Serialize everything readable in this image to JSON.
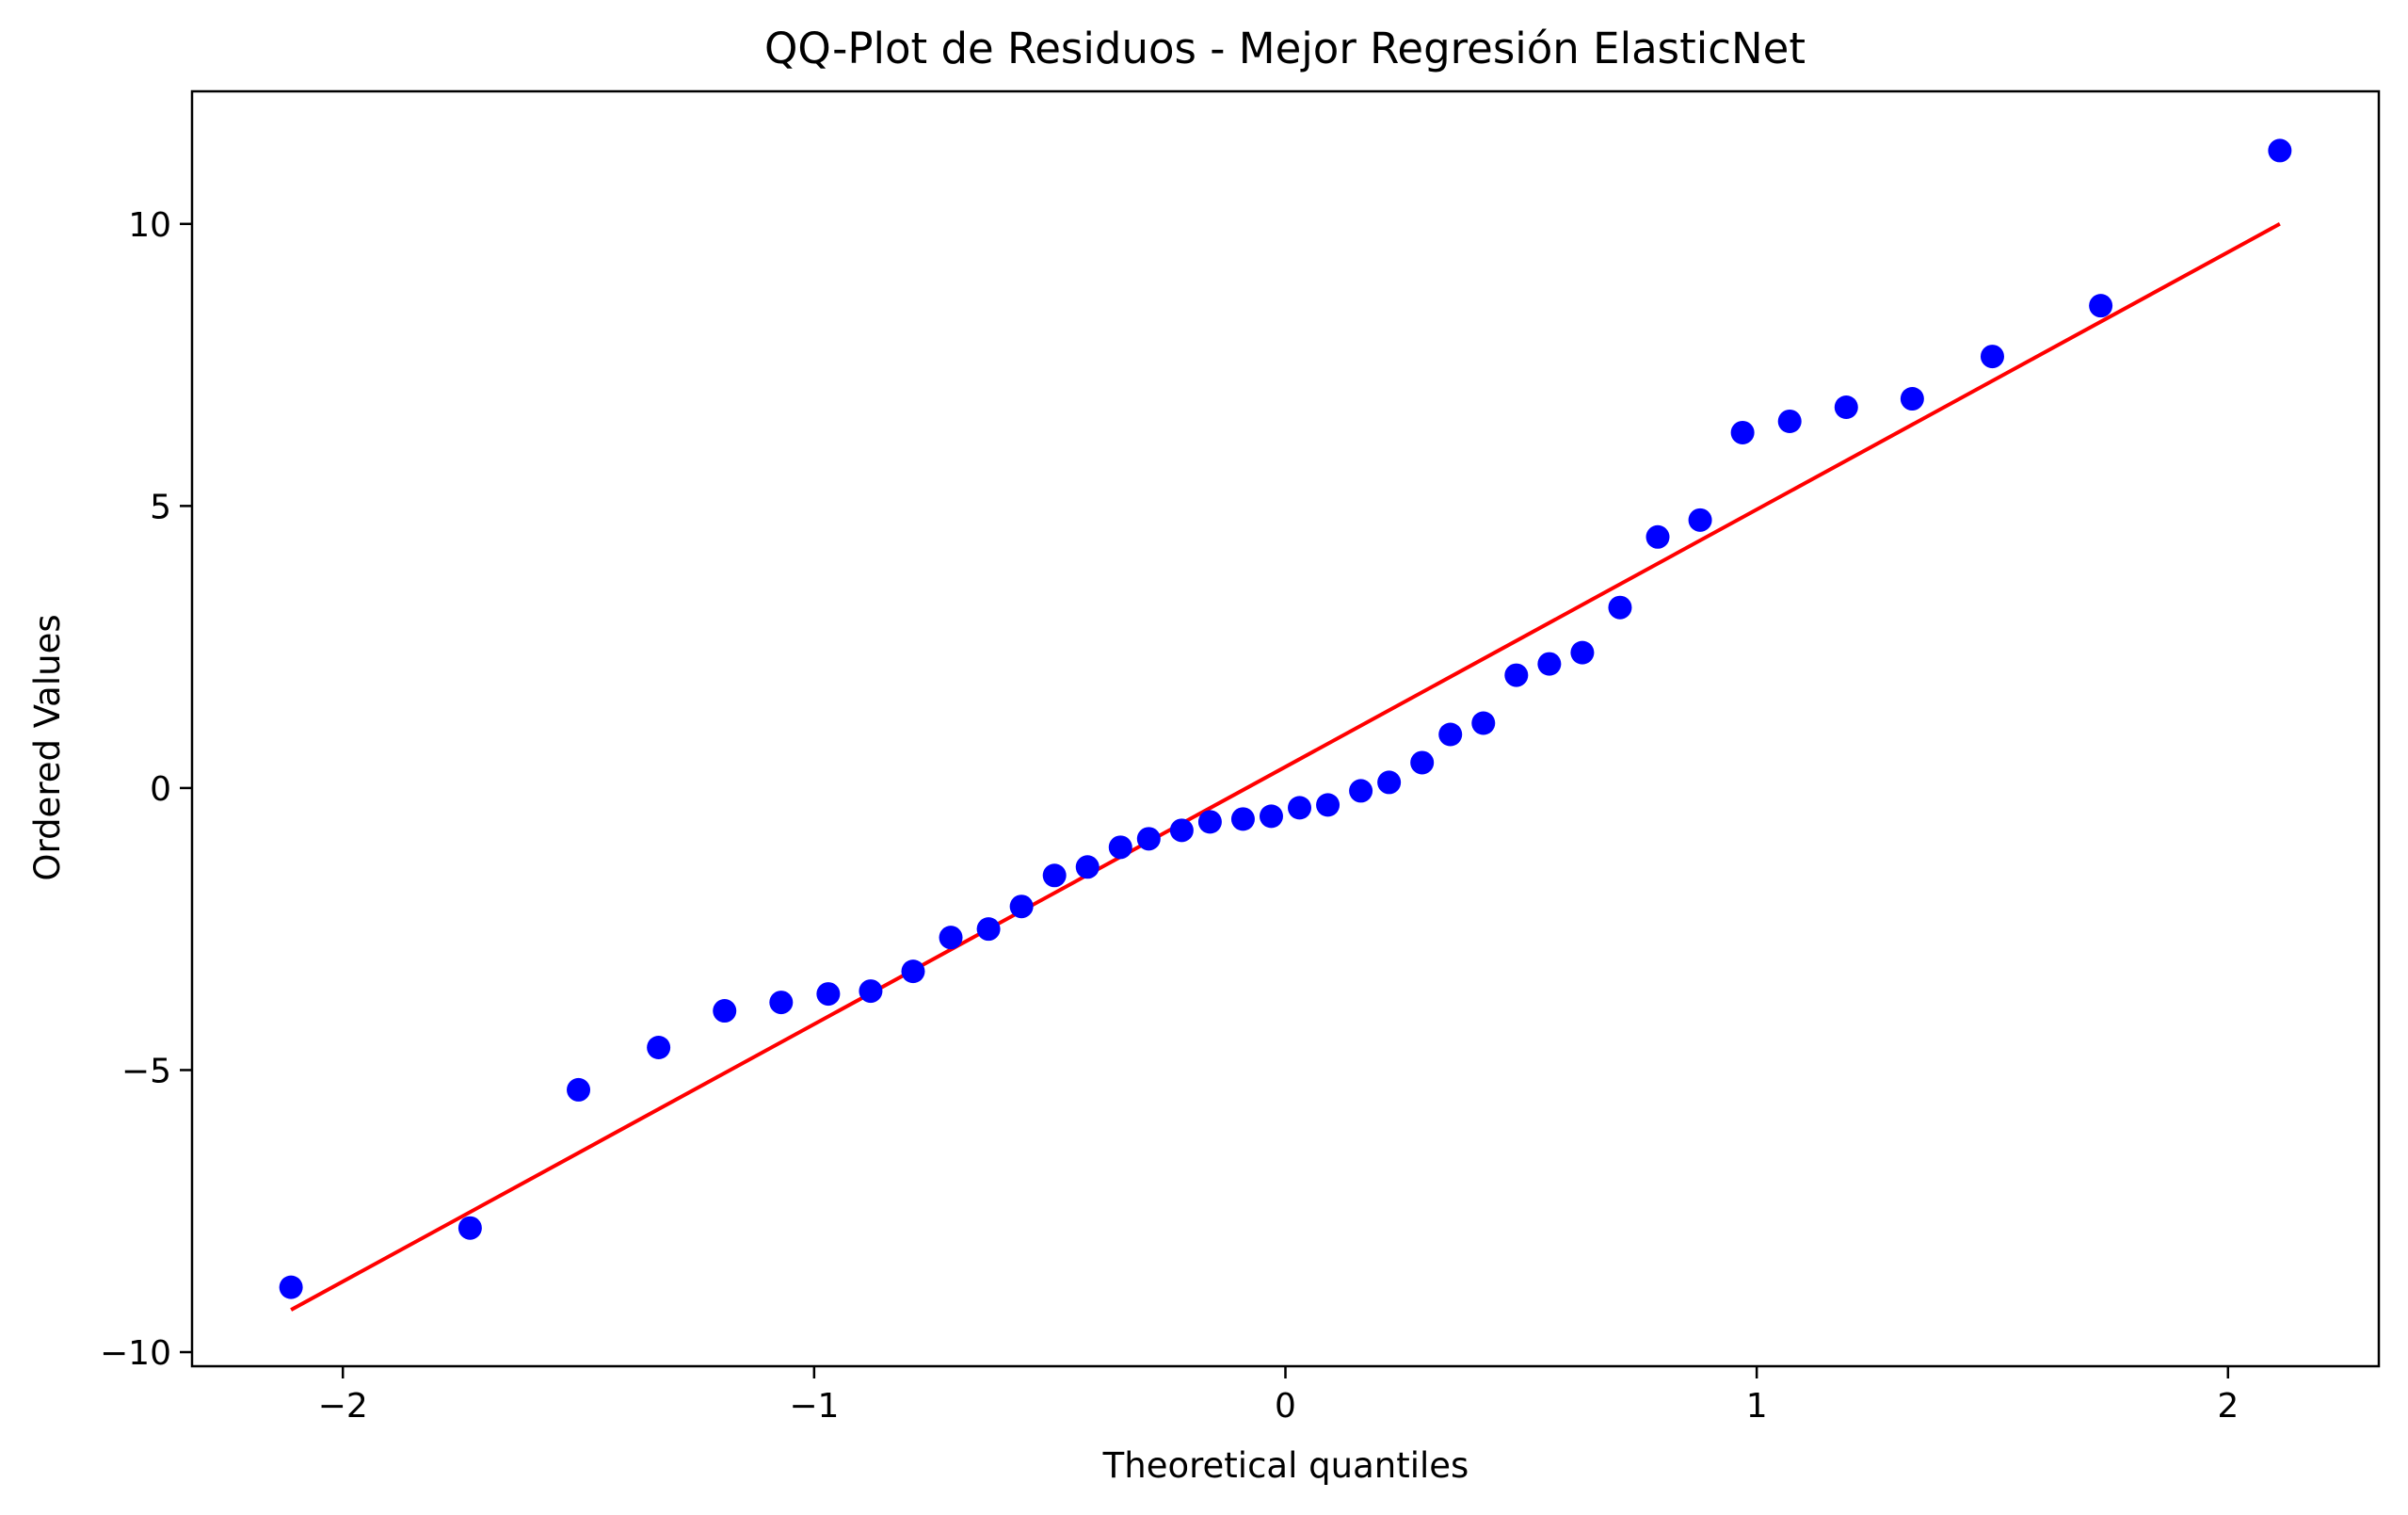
{
  "chart_data": {
    "type": "scatter",
    "title": "QQ-Plot de Residuos - Mejor Regresión ElasticNet",
    "xlabel": "Theoretical quantiles",
    "ylabel": "Ordered Values",
    "xlim": [
      -2.32,
      2.32
    ],
    "ylim": [
      -10.25,
      12.35
    ],
    "grid": false,
    "x_ticks": [
      -2,
      -1,
      0,
      1,
      2
    ],
    "x_tick_labels": [
      "−2",
      "−1",
      "0",
      "1",
      "2"
    ],
    "y_ticks": [
      -10,
      -5,
      0,
      5,
      10
    ],
    "y_tick_labels": [
      "−10",
      "−5",
      "0",
      "5",
      "10"
    ],
    "series": [
      {
        "type": "scatter",
        "color": "#0000ff",
        "x": [
          -2.11,
          -1.73,
          -1.5,
          -1.33,
          -1.19,
          -1.07,
          -0.97,
          -0.88,
          -0.79,
          -0.71,
          -0.63,
          -0.56,
          -0.49,
          -0.42,
          -0.35,
          -0.29,
          -0.22,
          -0.16,
          -0.09,
          -0.03,
          0.03,
          0.09,
          0.16,
          0.22,
          0.29,
          0.35,
          0.42,
          0.49,
          0.56,
          0.63,
          0.71,
          0.79,
          0.88,
          0.97,
          1.07,
          1.19,
          1.33,
          1.5,
          1.73,
          2.11
        ],
        "y": [
          -8.85,
          -7.8,
          -5.35,
          -4.6,
          -3.95,
          -3.8,
          -3.65,
          -3.6,
          -3.25,
          -2.65,
          -2.5,
          -2.1,
          -1.55,
          -1.4,
          -1.05,
          -0.9,
          -0.75,
          -0.6,
          -0.55,
          -0.5,
          -0.35,
          -0.3,
          -0.05,
          0.1,
          0.45,
          0.95,
          1.15,
          2.0,
          2.2,
          2.4,
          3.2,
          4.45,
          4.75,
          6.3,
          6.5,
          6.75,
          6.9,
          7.65,
          8.55,
          11.3
        ]
      },
      {
        "type": "line",
        "color": "#ff0000",
        "x": [
          -2.11,
          2.11
        ],
        "y": [
          -9.25,
          10.0
        ]
      }
    ]
  }
}
